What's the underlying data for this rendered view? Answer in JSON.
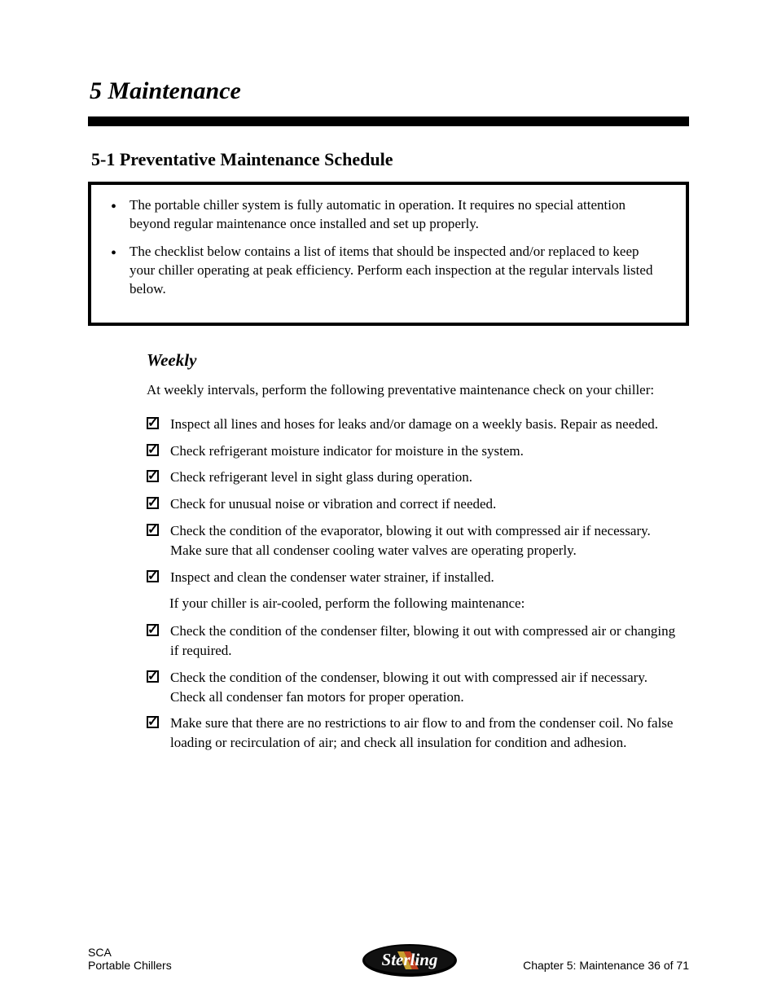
{
  "chapter": "5  Maintenance",
  "section": "5-1  Preventative Maintenance Schedule",
  "box_items": [
    "The portable chiller system is fully automatic in operation. It requires no special attention beyond regular maintenance once installed and set up properly.",
    "The checklist below contains a list of items that should be inspected and/or replaced to keep your chiller operating at peak efficiency. Perform each inspection at the regular intervals listed below."
  ],
  "subsection_heading": "Weekly",
  "subsection_intro": "At weekly intervals, perform the following preventative maintenance check on your chiller:",
  "checklist": [
    "Inspect all lines and hoses for leaks and/or damage on a weekly basis. Repair as needed.",
    "Check refrigerant moisture indicator for moisture in the system.",
    "Check refrigerant level in sight glass during operation.",
    "Check for unusual noise or vibration and correct if needed.",
    "Check the condition of the evaporator, blowing it out with compressed air if necessary. Make sure that all condenser cooling water valves are operating properly.",
    "Inspect and clean the condenser water strainer, if installed."
  ],
  "sub_checklist_intro": "If your chiller is air-cooled, perform the following maintenance:",
  "sub_checklist": [
    "Check the condition of the condenser filter, blowing it out with compressed air or changing if required.",
    "Check the condition of the condenser, blowing it out with compressed air if necessary. Check all condenser fan motors for proper operation.",
    "Make sure that there are no restrictions to air flow to and from the condenser coil. No false loading or recirculation of air; and check all insulation for condition and adhesion."
  ],
  "footer_left": "SCA\nPortable Chillers",
  "footer_right": "Chapter 5: Maintenance    36 of 71",
  "logo_text": "Sterling"
}
